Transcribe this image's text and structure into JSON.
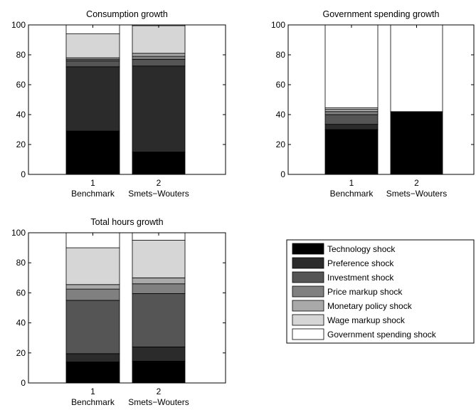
{
  "colors": {
    "technology": "#000000",
    "preference": "#2b2b2b",
    "investment": "#555555",
    "price_markup": "#808080",
    "monetary": "#a9a9a9",
    "wage_markup": "#d6d6d6",
    "government": "#ffffff"
  },
  "legend": {
    "items": [
      {
        "key": "technology",
        "label": "Technology shock"
      },
      {
        "key": "preference",
        "label": "Preference shock"
      },
      {
        "key": "investment",
        "label": "Investment shock"
      },
      {
        "key": "price_markup",
        "label": "Price markup shock"
      },
      {
        "key": "monetary",
        "label": "Monetary policy shock"
      },
      {
        "key": "wage_markup",
        "label": "Wage markup shock"
      },
      {
        "key": "government",
        "label": "Government spending shock"
      }
    ]
  },
  "chart_data": [
    {
      "type": "bar",
      "stacked": true,
      "title": "Consumption growth",
      "categories": [
        "1",
        "2"
      ],
      "category_labels": [
        "Benchmark",
        "Smets−Wouters"
      ],
      "ylim": [
        0,
        100
      ],
      "yticks": [
        0,
        20,
        40,
        60,
        80,
        100
      ],
      "series": [
        {
          "name": "Technology shock",
          "key": "technology",
          "values": [
            29,
            15
          ]
        },
        {
          "name": "Preference shock",
          "key": "preference",
          "values": [
            43,
            57.5
          ]
        },
        {
          "name": "Investment shock",
          "key": "investment",
          "values": [
            4,
            4.5
          ]
        },
        {
          "name": "Price markup shock",
          "key": "price_markup",
          "values": [
            1,
            2
          ]
        },
        {
          "name": "Monetary policy shock",
          "key": "monetary",
          "values": [
            1,
            2
          ]
        },
        {
          "name": "Wage markup shock",
          "key": "wage_markup",
          "values": [
            16,
            18.5
          ]
        },
        {
          "name": "Government spending shock",
          "key": "government",
          "values": [
            6,
            0.5
          ]
        }
      ]
    },
    {
      "type": "bar",
      "stacked": true,
      "title": "Government spending growth",
      "categories": [
        "1",
        "2"
      ],
      "category_labels": [
        "Benchmark",
        "Smets−Wouters"
      ],
      "ylim": [
        0,
        100
      ],
      "yticks": [
        0,
        20,
        40,
        60,
        80,
        100
      ],
      "series": [
        {
          "name": "Technology shock",
          "key": "technology",
          "values": [
            30,
            42
          ]
        },
        {
          "name": "Preference shock",
          "key": "preference",
          "values": [
            3.5,
            0
          ]
        },
        {
          "name": "Investment shock",
          "key": "investment",
          "values": [
            6.5,
            0
          ]
        },
        {
          "name": "Price markup shock",
          "key": "price_markup",
          "values": [
            2,
            0
          ]
        },
        {
          "name": "Monetary policy shock",
          "key": "monetary",
          "values": [
            1.5,
            0
          ]
        },
        {
          "name": "Wage markup shock",
          "key": "wage_markup",
          "values": [
            1,
            0
          ]
        },
        {
          "name": "Government spending shock",
          "key": "government",
          "values": [
            55.5,
            58
          ]
        }
      ]
    },
    {
      "type": "bar",
      "stacked": true,
      "title": "Total hours growth",
      "categories": [
        "1",
        "2"
      ],
      "category_labels": [
        "Benchmark",
        "Smets−Wouters"
      ],
      "ylim": [
        0,
        100
      ],
      "yticks": [
        0,
        20,
        40,
        60,
        80,
        100
      ],
      "series": [
        {
          "name": "Technology shock",
          "key": "technology",
          "values": [
            14,
            14.5
          ]
        },
        {
          "name": "Preference shock",
          "key": "preference",
          "values": [
            5.5,
            9.5
          ]
        },
        {
          "name": "Investment shock",
          "key": "investment",
          "values": [
            35.5,
            35.5
          ]
        },
        {
          "name": "Price markup shock",
          "key": "price_markup",
          "values": [
            7.5,
            6.5
          ]
        },
        {
          "name": "Monetary policy shock",
          "key": "monetary",
          "values": [
            3,
            4
          ]
        },
        {
          "name": "Wage markup shock",
          "key": "wage_markup",
          "values": [
            24.5,
            25
          ]
        },
        {
          "name": "Government spending shock",
          "key": "government",
          "values": [
            10,
            5
          ]
        }
      ]
    }
  ]
}
